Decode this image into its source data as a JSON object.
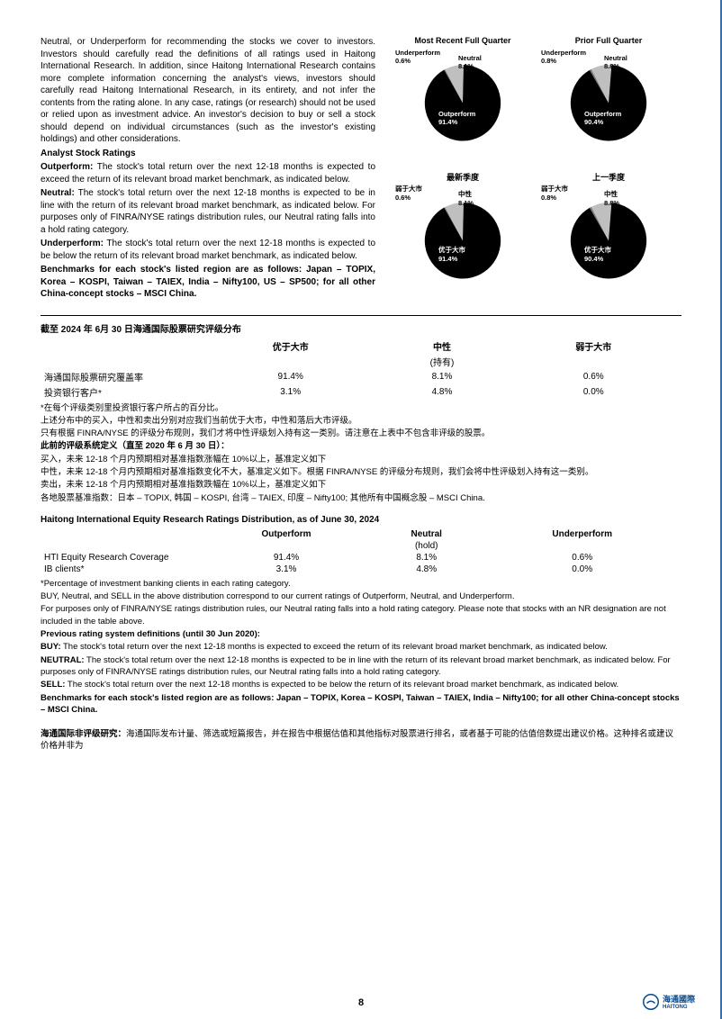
{
  "intro_text": "Neutral, or Underperform for recommending the stocks we cover to investors. Investors should carefully read the definitions of all ratings used in Haitong International Research. In addition, since Haitong International Research contains more complete information concerning the analyst's views, investors should carefully read Haitong International Research, in its entirety, and not infer the contents from the rating alone. In any case, ratings (or research) should not be used or relied upon as investment advice. An investor's decision to buy or sell a stock should depend on individual circumstances (such as the investor's existing holdings) and other considerations.",
  "ratings_heading": "Analyst Stock Ratings",
  "outperform_label": "Outperform:",
  "outperform_text": " The stock's total return over the next 12-18 months is expected to exceed the return of its relevant broad market benchmark, as indicated below.",
  "neutral_label": "Neutral:",
  "neutral_text": " The stock's total return over the next 12-18 months is expected to be in line with the return of its relevant broad market benchmark, as indicated below. For purposes only of FINRA/NYSE ratings distribution rules, our Neutral rating falls into a hold rating category.",
  "underperform_label": "Underperform:",
  "underperform_text": " The stock's total return over the next 12-18 months is expected to be below the return of its relevant broad market benchmark, as indicated below.",
  "benchmark_text": "Benchmarks for each stock's listed region are as follows: Japan – TOPIX, Korea – KOSPI, Taiwan – TAIEX, India – Nifty100, US – SP500; for all other China-concept stocks – MSCI China.",
  "charts": {
    "chart1": {
      "title": "Most Recent Full Quarter",
      "slices": [
        {
          "label": "Underperform",
          "value": 0.6,
          "display": "0.6%",
          "color": "#7a7a7a"
        },
        {
          "label": "Neutral",
          "value": 8.1,
          "display": "8.1%",
          "color": "#bfbfbf"
        },
        {
          "label": "Outperform",
          "value": 91.4,
          "display": "91.4%",
          "color": "#000000"
        }
      ]
    },
    "chart2": {
      "title": "Prior Full Quarter",
      "slices": [
        {
          "label": "Underperform",
          "value": 0.8,
          "display": "0.8%",
          "color": "#7a7a7a"
        },
        {
          "label": "Neutral",
          "value": 8.8,
          "display": "8.8%",
          "color": "#bfbfbf"
        },
        {
          "label": "Outperform",
          "value": 90.4,
          "display": "90.4%",
          "color": "#000000"
        }
      ]
    },
    "chart3": {
      "title": "最新季度",
      "slices": [
        {
          "label": "弱于大市",
          "value": 0.6,
          "display": "0.6%",
          "color": "#7a7a7a"
        },
        {
          "label": "中性",
          "value": 8.1,
          "display": "8.1%",
          "color": "#bfbfbf"
        },
        {
          "label": "优于大市",
          "value": 91.4,
          "display": "91.4%",
          "color": "#000000"
        }
      ]
    },
    "chart4": {
      "title": "上一季度",
      "slices": [
        {
          "label": "弱于大市",
          "value": 0.8,
          "display": "0.8%",
          "color": "#7a7a7a"
        },
        {
          "label": "中性",
          "value": 8.8,
          "display": "8.8%",
          "color": "#bfbfbf"
        },
        {
          "label": "优于大市",
          "value": 90.4,
          "display": "90.4%",
          "color": "#000000"
        }
      ]
    }
  },
  "cn_table": {
    "title": "截至 2024 年 6月 30 日海通国际股票研究评级分布",
    "headers": [
      "",
      "优于大市",
      "中性",
      "弱于大市"
    ],
    "subheader": "(持有)",
    "rows": [
      [
        "海通国际股票研究覆盖率",
        "91.4%",
        "8.1%",
        "0.6%"
      ],
      [
        "投资银行客户*",
        "3.1%",
        "4.8%",
        "0.0%"
      ]
    ]
  },
  "cn_notes": {
    "n1": "*在每个评级类别里投资银行客户所占的百分比。",
    "n2": "上述分布中的买入，中性和卖出分别对应我们当前优于大市，中性和落后大市评级。",
    "n3": "只有根据 FINRA/NYSE 的评级分布规则，我们才将中性评级划入持有这一类别。请注意在上表中不包含非评级的股票。",
    "n4_title": "此前的评级系统定义（直至 2020 年 6 月 30 日）：",
    "n5": "买入，未来 12-18 个月内预期相对基准指数涨幅在 10%以上，基准定义如下",
    "n6": "中性，未来 12-18 个月内预期相对基准指数变化不大，基准定义如下。根据 FINRA/NYSE 的评级分布规则，我们会将中性评级划入持有这一类别。",
    "n7": "卖出，未来 12-18 个月内预期相对基准指数跌幅在 10%以上，基准定义如下",
    "n8": "各地股票基准指数：日本 – TOPIX, 韩国 – KOSPI, 台湾 – TAIEX, 印度 – Nifty100; 其他所有中国概念股 – MSCI China."
  },
  "en_table": {
    "title": "Haitong International Equity Research Ratings Distribution, as of June 30, 2024",
    "headers": [
      "",
      "Outperform",
      "Neutral",
      "Underperform"
    ],
    "subheader": "(hold)",
    "rows": [
      [
        "HTI Equity Research Coverage",
        "91.4%",
        "8.1%",
        "0.6%"
      ],
      [
        "IB clients*",
        "3.1%",
        "4.8%",
        "0.0%"
      ]
    ]
  },
  "en_notes": {
    "n1": "*Percentage of investment banking clients in each rating category.",
    "n2": "BUY, Neutral, and SELL in the above distribution correspond to our current ratings of Outperform, Neutral, and Underperform.",
    "n3": "For purposes only of FINRA/NYSE ratings distribution rules, our Neutral rating falls into a hold rating category. Please note that stocks with an NR designation are not included in the table above.",
    "n4_title": "Previous rating system definitions (until 30 Jun 2020):",
    "buy_label": "BUY:",
    "buy_text": " The stock's total return over the next 12-18 months is expected to exceed the return of its relevant broad market benchmark, as indicated below.",
    "neutral_label": "NEUTRAL:",
    "neutral_text": " The stock's total return over the next 12-18 months is expected to be in line with the return of its relevant broad market benchmark, as indicated below. For purposes only of FINRA/NYSE ratings distribution rules, our Neutral rating falls into a hold rating category.",
    "sell_label": "SELL:",
    "sell_text": " The stock's total return over the next 12-18 months is expected to be below the return of its relevant broad market benchmark, as indicated below.",
    "bench": "Benchmarks for each stock's listed region are as follows: Japan – TOPIX, Korea – KOSPI, Taiwan – TAIEX, India – Nifty100; for all other China-concept stocks – MSCI China."
  },
  "bottom_label": "海通国际非评级研究：",
  "bottom_text": "海通国际发布计量、筛选或短篇报告，并在报告中根据估值和其他指标对股票进行排名，或者基于可能的估值倍数提出建议价格。这种排名或建议价格并非为",
  "page_number": "8",
  "logo_text": "海通國際",
  "logo_sub": "HAITONG",
  "logo_color": "#0a4a8a"
}
